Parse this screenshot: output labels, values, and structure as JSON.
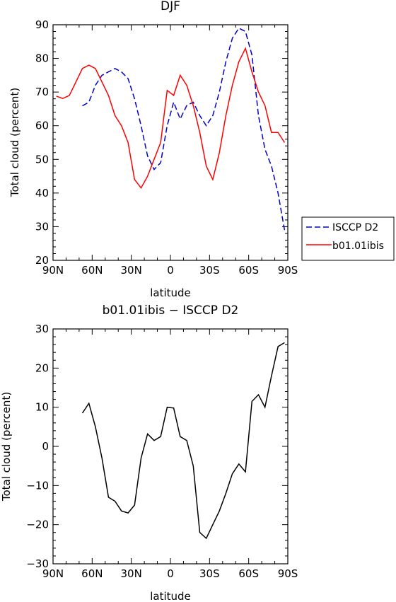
{
  "chart_data": [
    {
      "type": "line",
      "title": "DJF",
      "xlabel": "latitude",
      "ylabel": "Total cloud (percent)",
      "xlim": [
        90,
        -90
      ],
      "ylim": [
        20,
        90
      ],
      "x_tick_values": [
        90,
        60,
        30,
        0,
        -30,
        -60,
        -90
      ],
      "x_tick_labels": [
        "90N",
        "60N",
        "30N",
        "0",
        "30S",
        "60S",
        "90S"
      ],
      "y_tick_values": [
        20,
        30,
        40,
        50,
        60,
        70,
        80,
        90
      ],
      "y_tick_labels": [
        "20",
        "30",
        "40",
        "50",
        "60",
        "70",
        "80",
        "90"
      ],
      "legend_position": "right",
      "series": [
        {
          "name": "ISCCP D2",
          "color": "#0000cc",
          "dash": "dashed",
          "x": [
            67.5,
            62.5,
            57.5,
            52.5,
            47.5,
            42.5,
            37.5,
            32.5,
            27.5,
            22.5,
            17.5,
            12.5,
            7.5,
            2.5,
            -2.5,
            -7.5,
            -12.5,
            -17.5,
            -22.5,
            -27.5,
            -32.5,
            -37.5,
            -42.5,
            -47.5,
            -52.5,
            -57.5,
            -62.5,
            -67.5,
            -72.5,
            -77.5,
            -82.5,
            -87.5
          ],
          "y": [
            65.9,
            67.0,
            72.0,
            75.0,
            76.0,
            77.0,
            76.0,
            74.0,
            68.0,
            60.0,
            51.0,
            47.0,
            49.0,
            60.0,
            67.0,
            62.0,
            66.0,
            67.0,
            63.0,
            60.0,
            63.0,
            70.0,
            79.0,
            86.0,
            89.0,
            88.0,
            81.0,
            63.0,
            53.0,
            48.0,
            40.0,
            29.0
          ]
        },
        {
          "name": "b01.01ibis",
          "color": "#ff0000",
          "dash": "solid",
          "x": [
            87.5,
            82.5,
            77.5,
            72.5,
            67.5,
            62.5,
            57.5,
            52.5,
            47.5,
            42.5,
            37.5,
            32.5,
            27.5,
            22.5,
            17.5,
            12.5,
            7.5,
            2.5,
            -2.5,
            -7.5,
            -12.5,
            -17.5,
            -22.5,
            -27.5,
            -32.5,
            -37.5,
            -42.5,
            -47.5,
            -52.5,
            -57.5,
            -62.5,
            -67.5,
            -72.5,
            -77.5,
            -82.5,
            -87.5
          ],
          "y": [
            68.8,
            68.1,
            69.0,
            73.0,
            77.0,
            78.0,
            77.0,
            73.0,
            69.0,
            63.0,
            60.0,
            55.0,
            44.0,
            41.5,
            45.0,
            50.0,
            55.0,
            70.5,
            69.0,
            75.0,
            72.0,
            66.0,
            58.0,
            48.0,
            44.0,
            52.0,
            63.0,
            72.0,
            79.0,
            83.0,
            76.0,
            70.0,
            66.0,
            58.0,
            58.0,
            55.0
          ]
        }
      ]
    },
    {
      "type": "line",
      "title": "b01.01ibis − ISCCP D2",
      "xlabel": "latitude",
      "ylabel": "Total cloud (percent)",
      "xlim": [
        90,
        -90
      ],
      "ylim": [
        -30,
        30
      ],
      "x_tick_values": [
        90,
        60,
        30,
        0,
        -30,
        -60,
        -90
      ],
      "x_tick_labels": [
        "90N",
        "60N",
        "30N",
        "0",
        "30S",
        "60S",
        "90S"
      ],
      "y_tick_values": [
        -30,
        -20,
        -10,
        0,
        10,
        20,
        30
      ],
      "y_tick_labels": [
        "−30",
        "−20",
        "−10",
        "0",
        "10",
        "20",
        "30"
      ],
      "series": [
        {
          "color": "#000000",
          "dash": "solid",
          "x": [
            67.5,
            62.5,
            57.5,
            52.5,
            47.5,
            42.5,
            37.5,
            32.5,
            27.5,
            22.5,
            17.5,
            12.5,
            7.5,
            2.5,
            -2.5,
            -7.5,
            -12.5,
            -17.5,
            -22.5,
            -27.5,
            -32.5,
            -37.5,
            -42.5,
            -47.5,
            -52.5,
            -57.5,
            -62.5,
            -67.5,
            -72.5,
            -77.5,
            -82.5,
            -87.5
          ],
          "y": [
            8.5,
            11.0,
            5.0,
            -3.0,
            -13.0,
            -14.0,
            -16.5,
            -17.0,
            -15.0,
            -3.0,
            3.2,
            1.5,
            2.5,
            10.0,
            9.8,
            2.5,
            1.5,
            -5.0,
            -22.0,
            -23.5,
            -20.0,
            -16.5,
            -12.0,
            -7.0,
            -4.5,
            -6.5,
            11.5,
            13.2,
            10.0,
            18.0,
            25.5,
            26.5
          ]
        }
      ]
    }
  ]
}
